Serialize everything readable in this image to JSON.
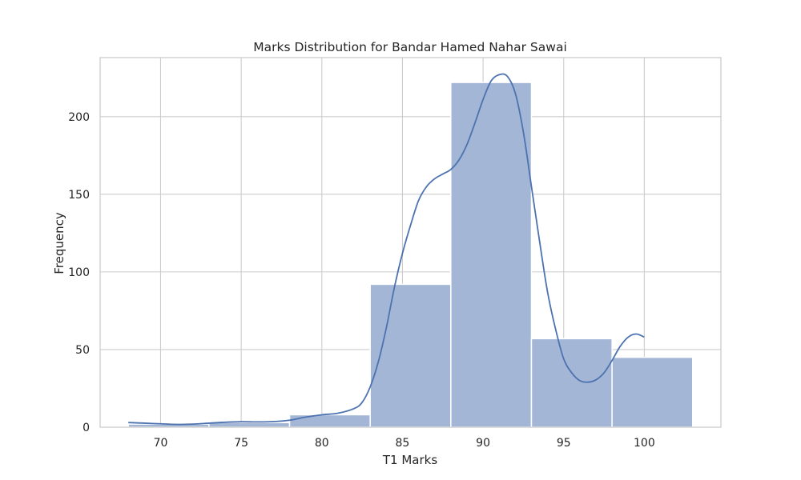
{
  "chart_data": {
    "type": "bar",
    "title": "Marks Distribution for Bandar Hamed Nahar Sawai",
    "xlabel": "T1 Marks",
    "ylabel": "Frequency",
    "xlim": [
      66.25,
      104.75
    ],
    "ylim": [
      0,
      238
    ],
    "xticks": [
      70,
      75,
      80,
      85,
      90,
      95,
      100
    ],
    "yticks": [
      0,
      50,
      100,
      150,
      200
    ],
    "bins": [
      {
        "x0": 68,
        "x1": 73,
        "value": 2
      },
      {
        "x0": 73,
        "x1": 78,
        "value": 3
      },
      {
        "x0": 78,
        "x1": 83,
        "value": 8
      },
      {
        "x0": 83,
        "x1": 88,
        "value": 92
      },
      {
        "x0": 88,
        "x1": 93,
        "value": 222
      },
      {
        "x0": 93,
        "x1": 98,
        "value": 57
      },
      {
        "x0": 98,
        "x1": 103,
        "value": 45
      }
    ],
    "kde": {
      "x": [
        68,
        69,
        70,
        71,
        72,
        73,
        74,
        75,
        76,
        77,
        78,
        79,
        80,
        81,
        82,
        82.5,
        83,
        83.5,
        84,
        84.5,
        85,
        85.5,
        86,
        86.5,
        87,
        87.5,
        88,
        88.5,
        89,
        89.5,
        90,
        90.5,
        91,
        91.5,
        92,
        92.5,
        93,
        93.5,
        94,
        94.5,
        95,
        95.5,
        96,
        96.5,
        97,
        97.5,
        98,
        98.5,
        99,
        99.5,
        100
      ],
      "y": [
        3,
        2.6,
        2.2,
        1.8,
        2,
        2.6,
        3.2,
        3.5,
        3.4,
        3.6,
        4.5,
        6.5,
        8,
        9,
        12,
        16,
        26,
        42,
        64,
        90,
        112,
        130,
        146,
        155,
        160,
        163,
        166,
        172,
        182,
        196,
        211,
        223,
        227,
        226,
        215,
        190,
        155,
        120,
        87,
        63,
        44,
        35,
        30,
        29,
        30.5,
        35,
        43,
        52,
        58,
        60,
        58
      ]
    },
    "grid": true,
    "legend": "none",
    "colors": {
      "bar_fill": "#a3b6d6",
      "bar_edge": "#ffffff",
      "kde_line": "#4c72b0",
      "grid": "#cccccc",
      "axes_edge": "#cccccc",
      "text": "#262626"
    }
  }
}
